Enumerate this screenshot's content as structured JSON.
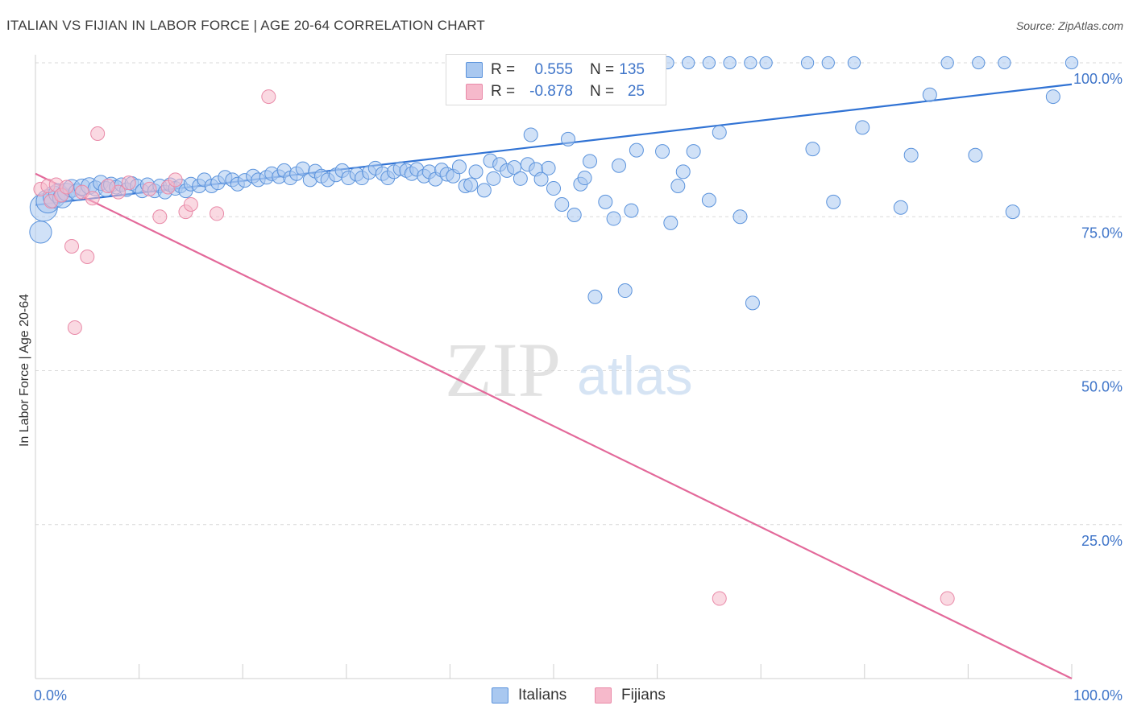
{
  "title": "ITALIAN VS FIJIAN IN LABOR FORCE | AGE 20-64 CORRELATION CHART",
  "source": "Source: ZipAtlas.com",
  "watermark": {
    "zip": "ZIP",
    "atlas": "atlas"
  },
  "legend": {
    "italians": {
      "r_label": "R =",
      "r_value": "0.555",
      "n_label": "N =",
      "n_value": "135"
    },
    "fijians": {
      "r_label": "R =",
      "r_value": "-0.878",
      "n_label": "N =",
      "n_value": "25"
    }
  },
  "colors": {
    "italians_fill": "#a9c8f0",
    "italians_stroke": "#5b93dc",
    "italians_line": "#3173d4",
    "fijians_fill": "#f6b9cb",
    "fijians_stroke": "#e98aa8",
    "fijians_line": "#e3699a",
    "value_text": "#3f75c9",
    "grid": "#d9d9d9"
  },
  "chart_data": {
    "type": "scatter",
    "title": "ITALIAN VS FIJIAN IN LABOR FORCE | AGE 20-64 CORRELATION CHART",
    "xlabel": "",
    "ylabel": "In Labor Force | Age 20-64",
    "xlim": [
      0,
      100
    ],
    "ylim": [
      0,
      100
    ],
    "x_tick_labels": [
      "0.0%",
      "100.0%"
    ],
    "y_tick_labels": [
      "25.0%",
      "50.0%",
      "75.0%",
      "100.0%"
    ],
    "y_ticks": [
      25,
      50,
      75,
      100
    ],
    "grid": "horizontal dashed",
    "legend_position": "bottom",
    "series": [
      {
        "name": "Italians",
        "trend": {
          "x": [
            0,
            100
          ],
          "y": [
            76.9,
            96.5
          ]
        },
        "points": [
          [
            0.5,
            72.5,
            1.6
          ],
          [
            0.8,
            76.5,
            2.0
          ],
          [
            1.2,
            77.5,
            1.7
          ],
          [
            1.8,
            78.2,
            1.6
          ],
          [
            2.2,
            78.8,
            1.4
          ],
          [
            2.6,
            78.0,
            1.4
          ],
          [
            3.0,
            79.0,
            1.3
          ],
          [
            3.5,
            79.6,
            1.3
          ],
          [
            4.0,
            79.0,
            1.2
          ],
          [
            4.5,
            79.8,
            1.2
          ],
          [
            5.2,
            80.0,
            1.2
          ],
          [
            5.8,
            79.6,
            1.1
          ],
          [
            6.3,
            80.5,
            1.1
          ],
          [
            6.8,
            79.5,
            1.1
          ],
          [
            7.3,
            80.2,
            1.1
          ],
          [
            7.8,
            79.8,
            1.0
          ],
          [
            8.3,
            80.2,
            1.0
          ],
          [
            8.8,
            79.4,
            1.0
          ],
          [
            9.3,
            80.4,
            1.0
          ],
          [
            9.8,
            80.0,
            1.0
          ],
          [
            10.3,
            79.2,
            1.0
          ],
          [
            10.8,
            80.2,
            1.0
          ],
          [
            11.5,
            79.2,
            1.0
          ],
          [
            12.0,
            80.0,
            1.0
          ],
          [
            12.5,
            79.0,
            1.0
          ],
          [
            13.0,
            80.2,
            1.0
          ],
          [
            13.5,
            79.6,
            1.0
          ],
          [
            14.0,
            80.0,
            1.0
          ],
          [
            14.5,
            79.2,
            1.0
          ],
          [
            15.0,
            80.3,
            1.0
          ],
          [
            15.8,
            80.0,
            1.0
          ],
          [
            16.3,
            81.0,
            1.0
          ],
          [
            17.0,
            80.0,
            1.0
          ],
          [
            17.6,
            80.5,
            1.0
          ],
          [
            18.3,
            81.4,
            1.0
          ],
          [
            19.0,
            81.0,
            1.0
          ],
          [
            19.5,
            80.3,
            1.0
          ],
          [
            20.2,
            80.9,
            1.0
          ],
          [
            21.0,
            81.6,
            1.0
          ],
          [
            21.5,
            81.0,
            1.0
          ],
          [
            22.3,
            81.4,
            1.0
          ],
          [
            22.8,
            82.0,
            1.0
          ],
          [
            23.5,
            81.5,
            1.0
          ],
          [
            24.0,
            82.5,
            1.0
          ],
          [
            24.6,
            81.3,
            1.0
          ],
          [
            25.2,
            82.0,
            1.0
          ],
          [
            25.8,
            82.8,
            1.0
          ],
          [
            26.5,
            81.0,
            1.0
          ],
          [
            27.0,
            82.4,
            1.0
          ],
          [
            27.6,
            81.6,
            1.0
          ],
          [
            28.2,
            81.0,
            1.0
          ],
          [
            29.0,
            81.8,
            1.0
          ],
          [
            29.6,
            82.5,
            1.0
          ],
          [
            30.2,
            81.3,
            1.0
          ],
          [
            31.0,
            81.9,
            1.0
          ],
          [
            31.5,
            81.3,
            1.0
          ],
          [
            32.2,
            82.2,
            1.0
          ],
          [
            32.8,
            82.9,
            1.0
          ],
          [
            33.5,
            82.0,
            1.0
          ],
          [
            34.0,
            81.3,
            1.0
          ],
          [
            34.6,
            82.3,
            1.0
          ],
          [
            35.2,
            82.8,
            1.0
          ],
          [
            35.8,
            82.5,
            1.0
          ],
          [
            36.3,
            82.0,
            1.0
          ],
          [
            36.8,
            82.7,
            1.0
          ],
          [
            37.5,
            81.6,
            1.0
          ],
          [
            38.0,
            82.3,
            1.0
          ],
          [
            38.6,
            81.1,
            1.0
          ],
          [
            39.2,
            82.6,
            1.0
          ],
          [
            39.7,
            81.9,
            1.0
          ],
          [
            40.3,
            81.6,
            1.0
          ],
          [
            40.9,
            83.1,
            1.0
          ],
          [
            41.5,
            80.0,
            1.0
          ],
          [
            42.0,
            80.2,
            1.0
          ],
          [
            42.5,
            82.3,
            1.0
          ],
          [
            43.3,
            79.3,
            1.0
          ],
          [
            43.9,
            84.1,
            1.0
          ],
          [
            44.2,
            81.2,
            1.0
          ],
          [
            44.8,
            83.5,
            1.0
          ],
          [
            45.5,
            82.5,
            1.0
          ],
          [
            46.2,
            83.0,
            1.0
          ],
          [
            46.8,
            81.2,
            1.0
          ],
          [
            47.5,
            83.5,
            1.0
          ],
          [
            47.8,
            88.3,
            1.0
          ],
          [
            48.3,
            82.7,
            1.0
          ],
          [
            48.8,
            81.1,
            1.0
          ],
          [
            49.5,
            82.9,
            1.0
          ],
          [
            50.0,
            79.6,
            1.0
          ],
          [
            50.8,
            77.0,
            1.0
          ],
          [
            51.4,
            87.6,
            1.0
          ],
          [
            52.0,
            75.3,
            1.0
          ],
          [
            52.6,
            80.3,
            1.0
          ],
          [
            53.0,
            81.3,
            1.0
          ],
          [
            53.5,
            84.0,
            1.0
          ],
          [
            54.0,
            62.0,
            1.0
          ],
          [
            55.0,
            77.4,
            1.0
          ],
          [
            55.8,
            74.7,
            1.0
          ],
          [
            56.3,
            83.3,
            1.0
          ],
          [
            56.9,
            63.0,
            1.0
          ],
          [
            57.5,
            76.0,
            1.0
          ],
          [
            58.0,
            85.8,
            1.0
          ],
          [
            60.5,
            85.6,
            1.0
          ],
          [
            61.3,
            74.0,
            1.0
          ],
          [
            62.0,
            80.0,
            1.0
          ],
          [
            62.5,
            82.3,
            1.0
          ],
          [
            63.5,
            85.6,
            1.0
          ],
          [
            65.0,
            77.7,
            1.0
          ],
          [
            66.0,
            88.7,
            1.0
          ],
          [
            68.0,
            75.0,
            1.0
          ],
          [
            69.2,
            61.0,
            1.0
          ],
          [
            75.0,
            86.0,
            1.0
          ],
          [
            77.0,
            77.4,
            1.0
          ],
          [
            79.8,
            89.5,
            1.0
          ],
          [
            83.5,
            76.5,
            1.0
          ],
          [
            84.5,
            85.0,
            1.0
          ],
          [
            86.3,
            94.8,
            1.0
          ],
          [
            90.7,
            85.0,
            1.0
          ],
          [
            94.3,
            75.8,
            1.0
          ],
          [
            98.2,
            94.5,
            1.0
          ],
          [
            50.5,
            100.0,
            0.9
          ],
          [
            53.0,
            100.0,
            0.9
          ],
          [
            55.0,
            100.0,
            0.9
          ],
          [
            57.0,
            100.0,
            0.9
          ],
          [
            59.0,
            100.0,
            0.9
          ],
          [
            61.0,
            100.0,
            0.9
          ],
          [
            63.0,
            100.0,
            0.9
          ],
          [
            65.0,
            100.0,
            0.9
          ],
          [
            67.0,
            100.0,
            0.9
          ],
          [
            69.0,
            100.0,
            0.9
          ],
          [
            70.5,
            100.0,
            0.9
          ],
          [
            74.5,
            100.0,
            0.9
          ],
          [
            76.5,
            100.0,
            0.9
          ],
          [
            79.0,
            100.0,
            0.9
          ],
          [
            88.0,
            100.0,
            0.9
          ],
          [
            91.0,
            100.0,
            0.9
          ],
          [
            93.5,
            100.0,
            0.9
          ],
          [
            100.0,
            100.0,
            0.9
          ],
          [
            53.8,
            95.8,
            1.0
          ]
        ]
      },
      {
        "name": "Fijians",
        "trend": {
          "x": [
            0,
            100
          ],
          "y": [
            82.0,
            0.0
          ]
        },
        "points": [
          [
            0.5,
            79.5,
            1.0
          ],
          [
            1.2,
            80.0,
            1.0
          ],
          [
            1.5,
            77.5,
            1.0
          ],
          [
            2.0,
            80.2,
            1.0
          ],
          [
            2.5,
            78.5,
            1.0
          ],
          [
            3.0,
            79.8,
            1.0
          ],
          [
            3.5,
            70.2,
            1.0
          ],
          [
            3.8,
            57.0,
            1.0
          ],
          [
            4.5,
            79.0,
            1.0
          ],
          [
            5.0,
            68.5,
            1.0
          ],
          [
            5.5,
            78.0,
            1.0
          ],
          [
            6.0,
            88.5,
            1.0
          ],
          [
            8.0,
            79.0,
            1.0
          ],
          [
            9.0,
            80.5,
            1.0
          ],
          [
            11.0,
            79.5,
            1.0
          ],
          [
            12.0,
            75.0,
            1.0
          ],
          [
            12.8,
            79.8,
            1.0
          ],
          [
            13.5,
            81.0,
            1.0
          ],
          [
            14.5,
            75.8,
            1.0
          ],
          [
            15.0,
            77.0,
            1.0
          ],
          [
            17.5,
            75.5,
            1.0
          ],
          [
            22.5,
            94.5,
            1.0
          ],
          [
            88.0,
            13.0,
            1.0
          ],
          [
            66.0,
            13.0,
            1.0
          ],
          [
            7.0,
            80.0,
            1.0
          ]
        ]
      }
    ]
  },
  "bottom_legend": {
    "italians": "Italians",
    "fijians": "Fijians"
  }
}
